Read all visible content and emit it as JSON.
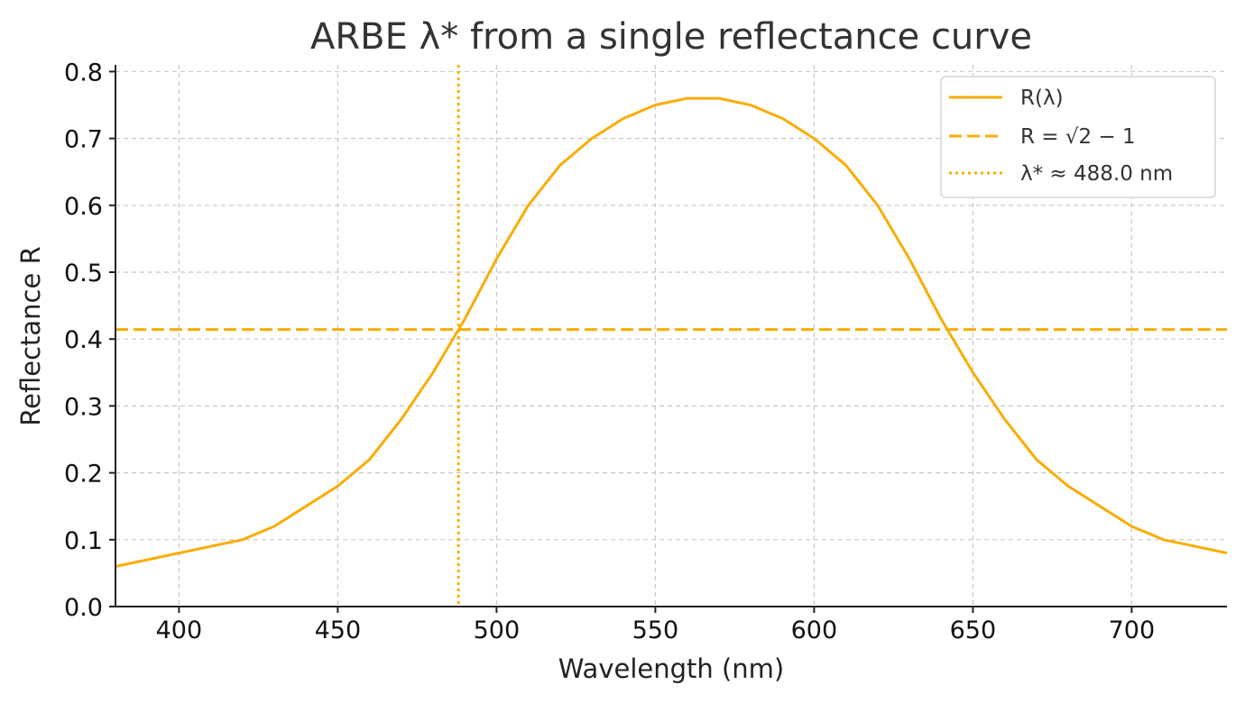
{
  "chart_data": {
    "type": "line",
    "title": "ARBE λ* from a single reflectance curve",
    "xlabel": "Wavelength (nm)",
    "ylabel": "Reflectance R",
    "xlim": [
      380,
      730
    ],
    "ylim": [
      0,
      0.81
    ],
    "xticks": [
      400,
      450,
      500,
      550,
      600,
      650,
      700
    ],
    "yticks": [
      0.0,
      0.1,
      0.2,
      0.3,
      0.4,
      0.5,
      0.6,
      0.7,
      0.8
    ],
    "xtick_labels": [
      "400",
      "450",
      "500",
      "550",
      "600",
      "650",
      "700"
    ],
    "ytick_labels": [
      "0.0",
      "0.1",
      "0.2",
      "0.3",
      "0.4",
      "0.5",
      "0.6",
      "0.7",
      "0.8"
    ],
    "grid": true,
    "legend_position": "top-right",
    "series": [
      {
        "name": "R(λ)",
        "style": "solid",
        "color": "#f9ad05",
        "x": [
          380,
          390,
          400,
          410,
          420,
          430,
          440,
          450,
          460,
          470,
          480,
          490,
          500,
          510,
          520,
          530,
          540,
          550,
          560,
          570,
          580,
          590,
          600,
          610,
          620,
          630,
          640,
          650,
          660,
          670,
          680,
          690,
          700,
          710,
          720,
          730
        ],
        "y": [
          0.06,
          0.07,
          0.08,
          0.09,
          0.1,
          0.12,
          0.15,
          0.18,
          0.22,
          0.28,
          0.35,
          0.43,
          0.52,
          0.6,
          0.66,
          0.7,
          0.73,
          0.75,
          0.76,
          0.76,
          0.75,
          0.73,
          0.7,
          0.66,
          0.6,
          0.52,
          0.43,
          0.35,
          0.28,
          0.22,
          0.18,
          0.15,
          0.12,
          0.1,
          0.09,
          0.08
        ]
      }
    ],
    "hlines": [
      {
        "name": "R = √2 − 1",
        "y": 0.4142,
        "style": "dashed",
        "color": "#f9ad05"
      }
    ],
    "vlines": [
      {
        "name": "λ* ≈ 488.0 nm",
        "x": 488.0,
        "style": "dotted",
        "color": "#f9ad05"
      }
    ]
  }
}
